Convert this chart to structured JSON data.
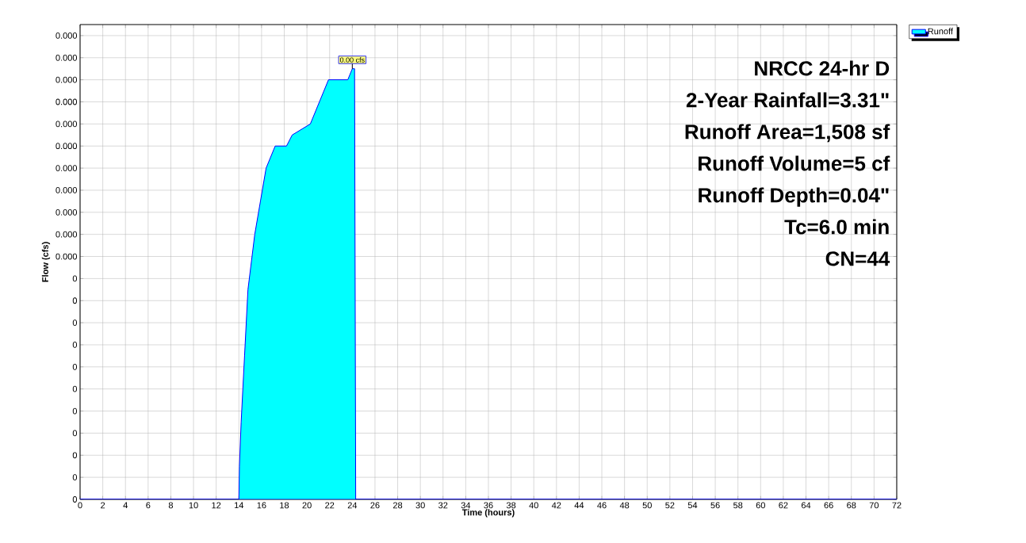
{
  "chart_data": {
    "type": "area",
    "xlabel": "Time  (hours)",
    "ylabel": "Flow  (cfs)",
    "x": [
      0,
      14,
      14.05,
      14.2,
      14.5,
      14.8,
      15.4,
      15.9,
      16.4,
      17.2,
      18.2,
      18.7,
      20.3,
      21.9,
      23.6,
      24.0,
      24.2,
      24.3,
      72
    ],
    "series": [
      {
        "name": "Runoff",
        "color": "#00ffff",
        "values": [
          0,
          0,
          3e-05,
          7e-05,
          0.00013,
          0.00019,
          0.00024,
          0.00027,
          0.0003,
          0.00032,
          0.00032,
          0.00033,
          0.00034,
          0.00038,
          0.00038,
          0.00039,
          0.00039,
          0,
          0
        ],
        "value_labels": [
          null,
          null,
          null,
          null,
          null,
          null,
          null,
          null,
          null,
          null,
          null,
          null,
          null,
          null,
          null,
          "0.00 cfs",
          null,
          null,
          null
        ]
      }
    ],
    "xlim": [
      0,
      72
    ],
    "xticks": [
      0,
      2,
      4,
      6,
      8,
      10,
      12,
      14,
      16,
      18,
      20,
      22,
      24,
      26,
      28,
      30,
      32,
      34,
      36,
      38,
      40,
      42,
      44,
      46,
      48,
      50,
      52,
      54,
      56,
      58,
      60,
      62,
      64,
      66,
      68,
      70,
      72
    ],
    "ylim": [
      0,
      0.00043
    ],
    "yticks": [
      {
        "value": 0,
        "label": "0"
      },
      {
        "value": 2e-05,
        "label": "0"
      },
      {
        "value": 4e-05,
        "label": "0"
      },
      {
        "value": 6e-05,
        "label": "0"
      },
      {
        "value": 8e-05,
        "label": "0"
      },
      {
        "value": 0.0001,
        "label": "0"
      },
      {
        "value": 0.00012,
        "label": "0"
      },
      {
        "value": 0.00014,
        "label": "0"
      },
      {
        "value": 0.00016,
        "label": "0"
      },
      {
        "value": 0.00018,
        "label": "0"
      },
      {
        "value": 0.0002,
        "label": "0"
      },
      {
        "value": 0.00022,
        "label": "0.000"
      },
      {
        "value": 0.00024,
        "label": "0.000"
      },
      {
        "value": 0.00026,
        "label": "0.000"
      },
      {
        "value": 0.00028,
        "label": "0.000"
      },
      {
        "value": 0.0003,
        "label": "0.000"
      },
      {
        "value": 0.00032,
        "label": "0.000"
      },
      {
        "value": 0.00034,
        "label": "0.000"
      },
      {
        "value": 0.00036,
        "label": "0.000"
      },
      {
        "value": 0.00038,
        "label": "0.000"
      },
      {
        "value": 0.0004,
        "label": "0.000"
      },
      {
        "value": 0.00042,
        "label": "0.000"
      }
    ],
    "grid": true,
    "legend": "top right",
    "annotations": [
      "NRCC 24-hr D",
      "2-Year Rainfall=3.31\"",
      "Runoff Area=1,508 sf",
      "Runoff Volume=5 cf",
      "Runoff Depth=0.04\"",
      "Tc=6.0 min",
      "CN=44"
    ]
  }
}
